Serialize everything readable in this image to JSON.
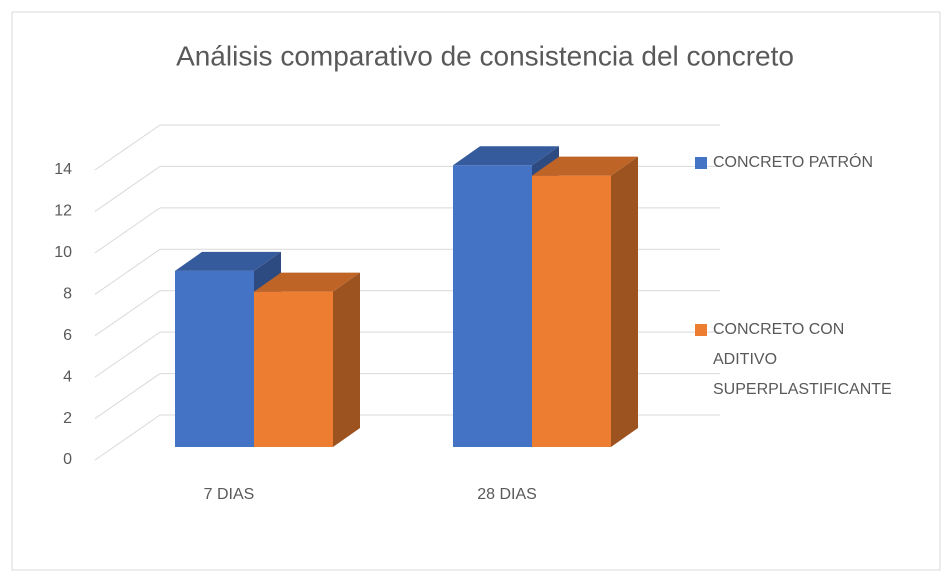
{
  "chart_data": {
    "type": "bar3d",
    "title": "Análisis comparativo de consistencia del concreto",
    "categories": [
      "7 DIAS",
      "28 DIAS"
    ],
    "series": [
      {
        "name": "CONCRETO PATRÓN",
        "color": "#4472c4",
        "values": [
          8.5,
          13.6
        ]
      },
      {
        "name": "CONCRETO CON ADITIVO SUPERPLASTIFICANTE",
        "color": "#ed7d31",
        "values": [
          7.5,
          13.1
        ]
      }
    ],
    "ylim": [
      0,
      14
    ],
    "yticks": [
      0,
      2,
      4,
      6,
      8,
      10,
      12,
      14
    ],
    "grid": true,
    "legend": "right"
  }
}
